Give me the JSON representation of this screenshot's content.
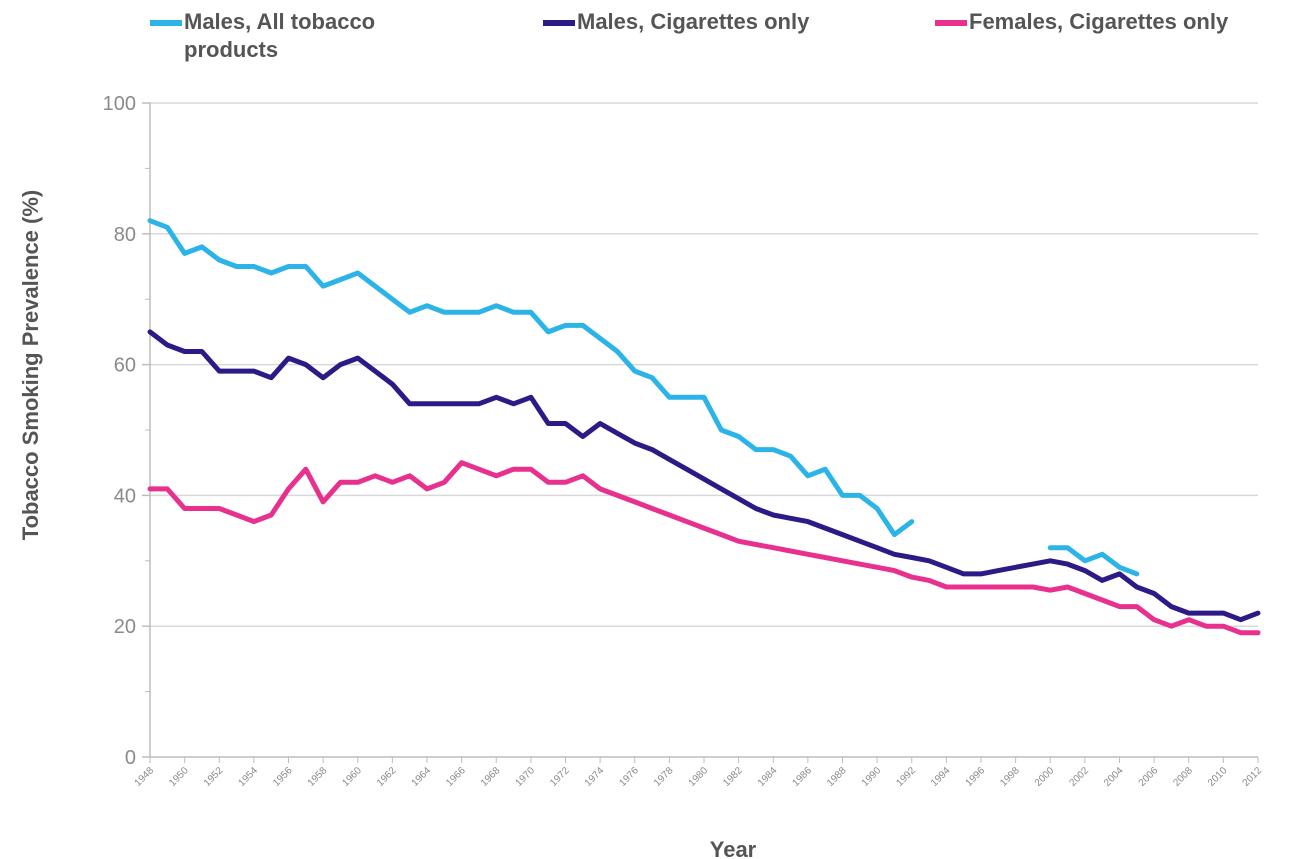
{
  "chart_data": {
    "type": "line",
    "title": "",
    "xlabel": "Year",
    "ylabel": "Tobacco Smoking Prevalence (%)",
    "xlim": [
      1948,
      2012
    ],
    "ylim": [
      0,
      100
    ],
    "yticks": [
      0,
      20,
      40,
      60,
      80,
      100
    ],
    "xticks": [
      "1948",
      "1950",
      "1952",
      "1954",
      "1956",
      "1958",
      "1960",
      "1962",
      "1964",
      "1966",
      "1968",
      "1970",
      "1972",
      "1974",
      "1976",
      "1978",
      "1980",
      "1982",
      "1984",
      "1986",
      "1988",
      "1990",
      "1992",
      "1994",
      "1996",
      "1998",
      "2000",
      "2002",
      "2004",
      "2006",
      "2008",
      "2010",
      "2012"
    ],
    "grid": "horizontal",
    "legend_position": "top",
    "series": [
      {
        "name": "Males, All tobacco products",
        "color": "#2cb4e8",
        "segments": [
          {
            "x": [
              1948,
              1949,
              1950,
              1951,
              1952,
              1953,
              1954,
              1955,
              1956,
              1957,
              1958,
              1959,
              1960,
              1961,
              1962,
              1963,
              1964,
              1965,
              1966,
              1967,
              1968,
              1969,
              1970,
              1971,
              1972,
              1973,
              1974,
              1975,
              1976,
              1977,
              1978,
              1979,
              1980,
              1981,
              1982,
              1983,
              1984,
              1985,
              1986,
              1987,
              1988,
              1989,
              1990,
              1991,
              1992
            ],
            "y": [
              82,
              81,
              77,
              78,
              76,
              75,
              75,
              74,
              75,
              75,
              72,
              73,
              74,
              72,
              70,
              68,
              69,
              68,
              68,
              68,
              69,
              68,
              68,
              65,
              66,
              66,
              64,
              62,
              59,
              58,
              55,
              55,
              55,
              50,
              49,
              47,
              47,
              46,
              43,
              44,
              40,
              40,
              38,
              34,
              36
            ]
          },
          {
            "x": [
              2000,
              2001,
              2002,
              2003,
              2004,
              2005
            ],
            "y": [
              32,
              32,
              30,
              31,
              29,
              28
            ]
          }
        ]
      },
      {
        "name": "Males, Cigarettes only",
        "color": "#2e1a87",
        "segments": [
          {
            "x": [
              1948,
              1949,
              1950,
              1951,
              1952,
              1953,
              1954,
              1955,
              1956,
              1957,
              1958,
              1959,
              1960,
              1961,
              1962,
              1963,
              1964,
              1965,
              1966,
              1967,
              1968,
              1969,
              1970,
              1971,
              1972,
              1973,
              1974,
              1975,
              1976,
              1977,
              1978,
              1979,
              1980,
              1981,
              1982,
              1983,
              1984,
              1985,
              1986,
              1987,
              1988,
              1989,
              1990,
              1991,
              1992,
              1993,
              1994,
              1995,
              1996,
              1997,
              1998,
              1999,
              2000,
              2001,
              2002,
              2003,
              2004,
              2005,
              2006,
              2007,
              2008,
              2009,
              2010,
              2011,
              2012
            ],
            "y": [
              65,
              63,
              62,
              62,
              59,
              59,
              59,
              58,
              61,
              60,
              58,
              60,
              61,
              59,
              57,
              54,
              54,
              54,
              54,
              54,
              55,
              54,
              55,
              51,
              51,
              49,
              51,
              49.5,
              48,
              47,
              45.5,
              44,
              42.5,
              41,
              39.5,
              38,
              37,
              36.5,
              36,
              35,
              34,
              33,
              32,
              31,
              30.5,
              30,
              29,
              28,
              28,
              28.5,
              29,
              29.5,
              30,
              29.5,
              28.5,
              27,
              28,
              26,
              25,
              23,
              22,
              22,
              22,
              21,
              22
            ]
          }
        ]
      },
      {
        "name": "Females, Cigarettes only",
        "color": "#e8318f",
        "segments": [
          {
            "x": [
              1948,
              1949,
              1950,
              1951,
              1952,
              1953,
              1954,
              1955,
              1956,
              1957,
              1958,
              1959,
              1960,
              1961,
              1962,
              1963,
              1964,
              1965,
              1966,
              1967,
              1968,
              1969,
              1970,
              1971,
              1972,
              1973,
              1974,
              1975,
              1976,
              1977,
              1978,
              1979,
              1980,
              1981,
              1982,
              1983,
              1984,
              1985,
              1986,
              1987,
              1988,
              1989,
              1990,
              1991,
              1992,
              1993,
              1994,
              1995,
              1996,
              1997,
              1998,
              1999,
              2000,
              2001,
              2002,
              2003,
              2004,
              2005,
              2006,
              2007,
              2008,
              2009,
              2010,
              2011,
              2012
            ],
            "y": [
              41,
              41,
              38,
              38,
              38,
              37,
              36,
              37,
              41,
              44,
              39,
              42,
              42,
              43,
              42,
              43,
              41,
              42,
              45,
              44,
              43,
              44,
              44,
              42,
              42,
              43,
              41,
              40,
              39,
              38,
              37,
              36,
              35,
              34,
              33,
              32.5,
              32,
              31.5,
              31,
              30.5,
              30,
              29.5,
              29,
              28.5,
              27.5,
              27,
              26,
              26,
              26,
              26,
              26,
              26,
              25.5,
              26,
              25,
              24,
              23,
              23,
              21,
              20,
              21,
              20,
              20,
              19,
              19
            ]
          }
        ]
      }
    ]
  }
}
